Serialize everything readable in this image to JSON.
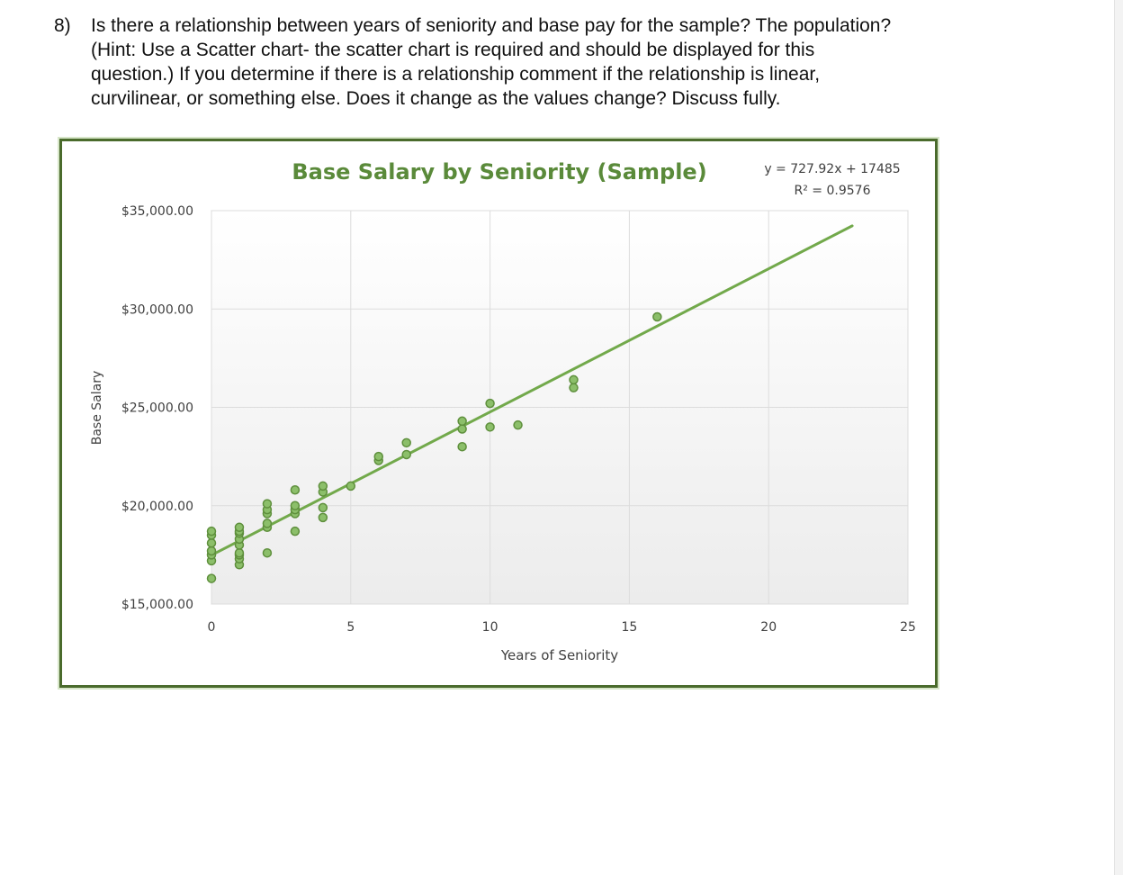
{
  "question": {
    "number": "8)",
    "lines": [
      "Is there a relationship between years of seniority and base pay for the sample? The population?",
      "(Hint: Use a Scatter chart- the scatter chart is required and should be displayed for this",
      "question.) If you determine if there is a relationship comment if the relationship is linear,",
      "curvilinear, or something else. Does it change as the values change? Discuss fully."
    ]
  },
  "colors": {
    "title": "#5a8a3a",
    "marker_fill": "#8cbf6a",
    "marker_stroke": "#5e8f3c",
    "trendline": "#72a94b",
    "frame": "#4a6b2c",
    "grid": "#dcdcdc",
    "axis_text": "#404040"
  },
  "chart_data": {
    "type": "scatter",
    "title": "Base Salary by Seniority (Sample)",
    "xlabel": "Years of Seniority",
    "ylabel": "Base Salary",
    "xlim": [
      0,
      25
    ],
    "ylim": [
      15000,
      35000
    ],
    "x_ticks": [
      "0",
      "5",
      "10",
      "15",
      "20",
      "25"
    ],
    "y_ticks": [
      "$15,000.00",
      "$20,000.00",
      "$25,000.00",
      "$30,000.00",
      "$35,000.00"
    ],
    "grid": true,
    "points": [
      {
        "x": 0,
        "y": 16300
      },
      {
        "x": 0,
        "y": 17200
      },
      {
        "x": 0,
        "y": 17500
      },
      {
        "x": 0,
        "y": 17700
      },
      {
        "x": 0,
        "y": 18100
      },
      {
        "x": 0,
        "y": 18500
      },
      {
        "x": 0,
        "y": 18700
      },
      {
        "x": 1,
        "y": 17000
      },
      {
        "x": 1,
        "y": 17300
      },
      {
        "x": 1,
        "y": 17500
      },
      {
        "x": 1,
        "y": 17600
      },
      {
        "x": 1,
        "y": 18000
      },
      {
        "x": 1,
        "y": 18300
      },
      {
        "x": 1,
        "y": 18600
      },
      {
        "x": 1,
        "y": 18700
      },
      {
        "x": 1,
        "y": 18900
      },
      {
        "x": 2,
        "y": 17600
      },
      {
        "x": 2,
        "y": 18900
      },
      {
        "x": 2,
        "y": 19100
      },
      {
        "x": 2,
        "y": 19600
      },
      {
        "x": 2,
        "y": 19800
      },
      {
        "x": 2,
        "y": 20100
      },
      {
        "x": 3,
        "y": 18700
      },
      {
        "x": 3,
        "y": 19600
      },
      {
        "x": 3,
        "y": 19800
      },
      {
        "x": 3,
        "y": 20000
      },
      {
        "x": 3,
        "y": 20800
      },
      {
        "x": 4,
        "y": 19400
      },
      {
        "x": 4,
        "y": 19900
      },
      {
        "x": 4,
        "y": 20700
      },
      {
        "x": 4,
        "y": 21000
      },
      {
        "x": 5,
        "y": 21000
      },
      {
        "x": 6,
        "y": 22300
      },
      {
        "x": 6,
        "y": 22500
      },
      {
        "x": 7,
        "y": 22600
      },
      {
        "x": 7,
        "y": 23200
      },
      {
        "x": 9,
        "y": 23000
      },
      {
        "x": 9,
        "y": 23900
      },
      {
        "x": 9,
        "y": 24300
      },
      {
        "x": 10,
        "y": 24000
      },
      {
        "x": 10,
        "y": 25200
      },
      {
        "x": 11,
        "y": 24100
      },
      {
        "x": 13,
        "y": 26000
      },
      {
        "x": 13,
        "y": 26400
      },
      {
        "x": 16,
        "y": 29600
      }
    ],
    "trendline": {
      "type": "linear",
      "slope": 727.92,
      "intercept": 17485,
      "x_range": [
        0,
        23
      ],
      "equation": "y = 727.92x + 17485",
      "r_squared": "R² = 0.9576"
    }
  }
}
